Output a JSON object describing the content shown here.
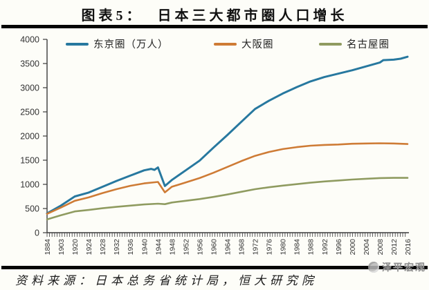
{
  "header": {
    "title": "图表5：  日本三大都市圈人口增长"
  },
  "footer": {
    "source": "资料来源：日本总务省统计局，恒大研究院",
    "watermark": "泽平宏观"
  },
  "colors": {
    "tokyo": "#27789f",
    "osaka": "#ce7b35",
    "nagoya": "#8f9b60",
    "axis": "#3a3a3a",
    "tick_label": "#333333"
  },
  "chart_data": {
    "type": "line",
    "title": "日本三大都市圈人口增长",
    "unit": "万人",
    "xlabel": "",
    "ylabel": "",
    "ylim": [
      0,
      4000
    ],
    "y_ticks": [
      0,
      500,
      1000,
      1500,
      2000,
      2500,
      3000,
      3500,
      4000
    ],
    "x_tick_labels": [
      "1884",
      "1903",
      "1920",
      "1924",
      "1928",
      "1932",
      "1936",
      "1940",
      "1944",
      "1948",
      "1952",
      "1956",
      "1960",
      "1964",
      "1968",
      "1972",
      "1976",
      "1980",
      "1984",
      "1988",
      "1992",
      "1996",
      "2000",
      "2004",
      "2008",
      "2012",
      "2016"
    ],
    "grid": false,
    "legend_position": "top",
    "series": [
      {
        "name": "东京圈（万人）",
        "color": "#27789f",
        "points": [
          [
            1884,
            400
          ],
          [
            1903,
            560
          ],
          [
            1920,
            750
          ],
          [
            1924,
            830
          ],
          [
            1928,
            950
          ],
          [
            1932,
            1070
          ],
          [
            1936,
            1180
          ],
          [
            1940,
            1290
          ],
          [
            1942,
            1320
          ],
          [
            1943,
            1300
          ],
          [
            1944,
            1350
          ],
          [
            1946,
            965
          ],
          [
            1948,
            1090
          ],
          [
            1952,
            1290
          ],
          [
            1956,
            1490
          ],
          [
            1960,
            1760
          ],
          [
            1964,
            2020
          ],
          [
            1968,
            2290
          ],
          [
            1972,
            2560
          ],
          [
            1976,
            2730
          ],
          [
            1980,
            2880
          ],
          [
            1984,
            3010
          ],
          [
            1988,
            3130
          ],
          [
            1992,
            3220
          ],
          [
            1996,
            3290
          ],
          [
            2000,
            3360
          ],
          [
            2004,
            3440
          ],
          [
            2008,
            3520
          ],
          [
            2009,
            3570
          ],
          [
            2012,
            3580
          ],
          [
            2014,
            3600
          ],
          [
            2016,
            3640
          ]
        ]
      },
      {
        "name": "大阪圈",
        "color": "#ce7b35",
        "points": [
          [
            1884,
            390
          ],
          [
            1903,
            520
          ],
          [
            1920,
            660
          ],
          [
            1924,
            730
          ],
          [
            1928,
            820
          ],
          [
            1932,
            900
          ],
          [
            1936,
            970
          ],
          [
            1940,
            1020
          ],
          [
            1944,
            1050
          ],
          [
            1946,
            835
          ],
          [
            1948,
            950
          ],
          [
            1952,
            1040
          ],
          [
            1956,
            1130
          ],
          [
            1960,
            1240
          ],
          [
            1964,
            1360
          ],
          [
            1968,
            1480
          ],
          [
            1972,
            1590
          ],
          [
            1976,
            1670
          ],
          [
            1980,
            1730
          ],
          [
            1984,
            1770
          ],
          [
            1988,
            1800
          ],
          [
            1992,
            1815
          ],
          [
            1996,
            1825
          ],
          [
            2000,
            1840
          ],
          [
            2004,
            1845
          ],
          [
            2008,
            1850
          ],
          [
            2012,
            1845
          ],
          [
            2016,
            1835
          ]
        ]
      },
      {
        "name": "名古屋圈",
        "color": "#8f9b60",
        "points": [
          [
            1884,
            275
          ],
          [
            1903,
            360
          ],
          [
            1920,
            440
          ],
          [
            1924,
            470
          ],
          [
            1928,
            505
          ],
          [
            1932,
            535
          ],
          [
            1936,
            560
          ],
          [
            1940,
            585
          ],
          [
            1944,
            600
          ],
          [
            1946,
            590
          ],
          [
            1948,
            625
          ],
          [
            1952,
            660
          ],
          [
            1956,
            695
          ],
          [
            1960,
            740
          ],
          [
            1964,
            790
          ],
          [
            1968,
            845
          ],
          [
            1972,
            900
          ],
          [
            1976,
            940
          ],
          [
            1980,
            975
          ],
          [
            1984,
            1005
          ],
          [
            1988,
            1035
          ],
          [
            1992,
            1060
          ],
          [
            1996,
            1080
          ],
          [
            2000,
            1100
          ],
          [
            2004,
            1115
          ],
          [
            2008,
            1130
          ],
          [
            2012,
            1135
          ],
          [
            2016,
            1135
          ]
        ]
      }
    ]
  }
}
